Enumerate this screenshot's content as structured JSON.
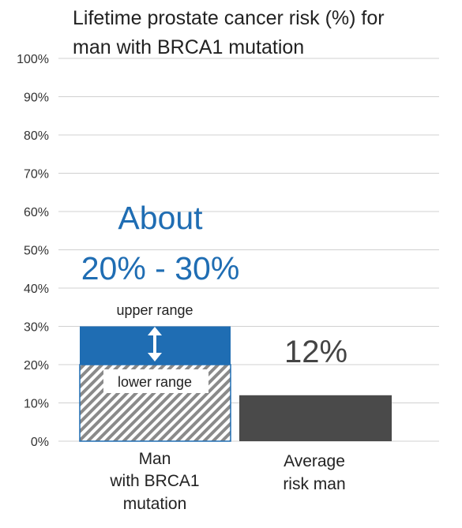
{
  "chart_data": {
    "type": "bar",
    "title_lines": [
      "Lifetime prostate cancer risk (%) for",
      "man with BRCA1 mutation"
    ],
    "yticks": [
      "0%",
      "10%",
      "20%",
      "30%",
      "40%",
      "50%",
      "60%",
      "70%",
      "80%",
      "90%",
      "100%"
    ],
    "ylim": [
      0,
      100
    ],
    "grid": true,
    "categories": [
      {
        "label_lines": [
          "Man",
          "with BRCA1",
          "mutation"
        ]
      },
      {
        "label_lines": [
          "Average",
          "risk man"
        ]
      }
    ],
    "brca1": {
      "lower": 20,
      "upper": 30,
      "lower_label": "lower range",
      "upper_label": "upper range",
      "headline_lines": [
        "About",
        "20% - 30%"
      ]
    },
    "average": {
      "value": 12,
      "value_label": "12%"
    },
    "colors": {
      "upper_range": "#1f6db3",
      "lower_range_hatch": "#8a8a8a",
      "lower_range_border": "#1f6db3",
      "average_bar": "#4a4a4a",
      "headline": "#1f6db3",
      "gridline": "#d0d0d0"
    }
  }
}
